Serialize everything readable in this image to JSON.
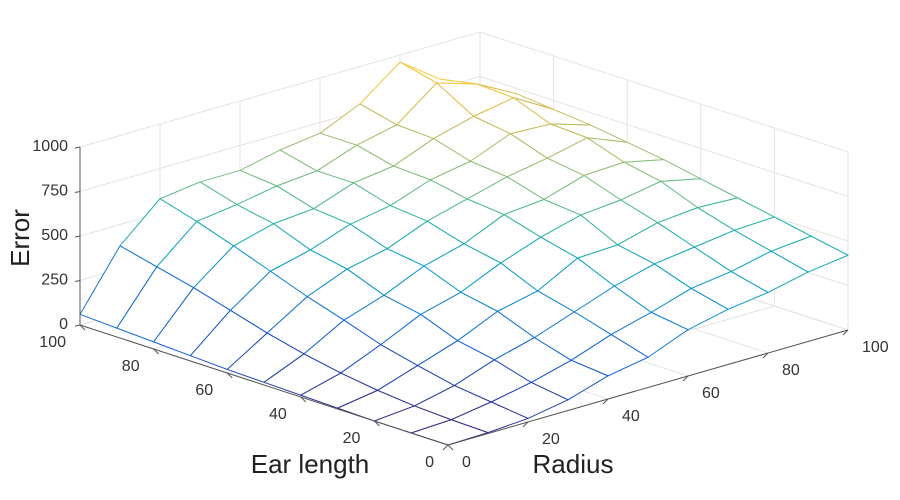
{
  "chart_data": {
    "type": "mesh",
    "xlabel": "Radius",
    "ylabel": "Ear length",
    "zlabel": "Error",
    "x": [
      0,
      10,
      20,
      30,
      40,
      50,
      60,
      70,
      80,
      90,
      100
    ],
    "y": [
      0,
      10,
      20,
      30,
      40,
      50,
      60,
      70,
      80,
      90,
      100
    ],
    "z": [
      [
        0,
        5,
        20,
        60,
        130,
        170,
        260,
        310,
        340,
        390,
        420
      ],
      [
        0,
        10,
        45,
        90,
        150,
        230,
        290,
        360,
        390,
        440,
        460
      ],
      [
        0,
        20,
        70,
        150,
        210,
        290,
        370,
        430,
        460,
        490,
        500
      ],
      [
        5,
        40,
        115,
        190,
        290,
        340,
        460,
        470,
        530,
        550,
        540
      ],
      [
        10,
        70,
        165,
        270,
        330,
        430,
        510,
        570,
        590,
        630,
        580
      ],
      [
        15,
        110,
        235,
        310,
        410,
        470,
        570,
        590,
        660,
        670,
        620
      ],
      [
        20,
        160,
        300,
        390,
        440,
        530,
        590,
        650,
        690,
        740,
        650
      ],
      [
        30,
        220,
        375,
        430,
        510,
        550,
        630,
        670,
        760,
        750,
        680
      ],
      [
        40,
        280,
        450,
        510,
        530,
        610,
        640,
        730,
        790,
        830,
        700
      ],
      [
        50,
        330,
        520,
        550,
        590,
        610,
        690,
        740,
        910,
        840,
        720
      ],
      [
        60,
        380,
        580,
        610,
        610,
        660,
        690,
        790,
        960,
        800,
        700
      ]
    ],
    "xlim": [
      0,
      100
    ],
    "ylim": [
      0,
      100
    ],
    "zlim": [
      0,
      1000
    ],
    "xticks": [
      0,
      20,
      40,
      60,
      80,
      100
    ],
    "yticks": [
      0,
      20,
      40,
      60,
      80,
      100
    ],
    "zticks": [
      0,
      250,
      500,
      750,
      1000
    ],
    "grid": true,
    "colormap": [
      "#352a87",
      "#0f5cdd",
      "#1481d6",
      "#06a4ca",
      "#2eb7a4",
      "#87bf77",
      "#d1bb59",
      "#fec832",
      "#f9fb0e"
    ]
  }
}
